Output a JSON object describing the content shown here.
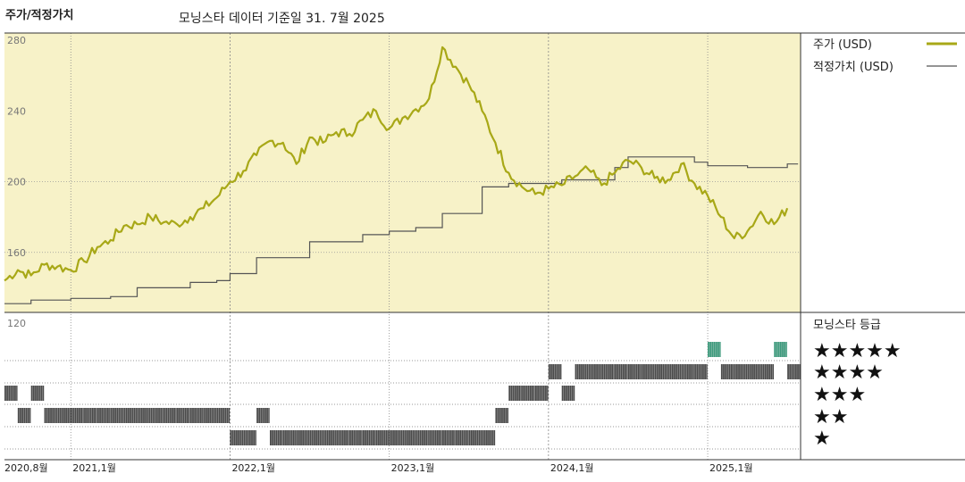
{
  "header": {
    "left_title": "주가/적정가치",
    "subtitle": "모닝스타 데이터 기준일 31. 7월 2025"
  },
  "colors": {
    "price": "#a8a817",
    "fair_value": "#555555",
    "plot_bg": "#f7f2c8",
    "rating_bar": "#4a4a4a",
    "rating_top": "#3c9a7c"
  },
  "chart_data": {
    "type": "line",
    "ylim": [
      120,
      280
    ],
    "y_ticks": [
      "280",
      "240",
      "200",
      "160",
      "120"
    ],
    "x_ticks": [
      "2020,8월",
      "2021,1월",
      "2022,1월",
      "2023,1월",
      "2024,1월",
      "2025,1월"
    ],
    "series": [
      {
        "name": "주가 (USD)",
        "x": [
          "2020-08",
          "2020-09",
          "2020-10",
          "2020-11",
          "2020-12",
          "2021-01",
          "2021-02",
          "2021-03",
          "2021-04",
          "2021-05",
          "2021-06",
          "2021-07",
          "2021-08",
          "2021-09",
          "2021-10",
          "2021-11",
          "2021-12",
          "2022-01",
          "2022-02",
          "2022-03",
          "2022-04",
          "2022-05",
          "2022-06",
          "2022-07",
          "2022-08",
          "2022-09",
          "2022-10",
          "2022-11",
          "2022-12",
          "2023-01",
          "2023-02",
          "2023-03",
          "2023-04",
          "2023-05",
          "2023-06",
          "2023-07",
          "2023-08",
          "2023-09",
          "2023-10",
          "2023-11",
          "2023-12",
          "2024-01",
          "2024-02",
          "2024-03",
          "2024-04",
          "2024-05",
          "2024-06",
          "2024-07",
          "2024-08",
          "2024-09",
          "2024-10",
          "2024-11",
          "2024-12",
          "2025-01",
          "2025-02",
          "2025-03",
          "2025-04",
          "2025-05",
          "2025-06",
          "2025-07"
        ],
        "values": [
          144,
          150,
          147,
          153,
          152,
          150,
          155,
          163,
          167,
          175,
          176,
          180,
          177,
          176,
          180,
          185,
          191,
          200,
          206,
          215,
          223,
          222,
          210,
          225,
          222,
          228,
          227,
          235,
          240,
          230,
          236,
          241,
          247,
          276,
          265,
          255,
          240,
          222,
          205,
          197,
          193,
          196,
          198,
          203,
          207,
          198,
          205,
          212,
          208,
          202,
          201,
          210,
          199,
          192,
          180,
          168,
          172,
          183,
          176,
          185
        ]
      },
      {
        "name": "적정가치 (USD)",
        "x": [
          "2020-08",
          "2020-10",
          "2021-01",
          "2021-04",
          "2021-06",
          "2021-10",
          "2021-12",
          "2022-01",
          "2022-03",
          "2022-07",
          "2022-11",
          "2023-01",
          "2023-03",
          "2023-05",
          "2023-08",
          "2023-10",
          "2024-02",
          "2024-06",
          "2024-07",
          "2024-12",
          "2025-01",
          "2025-04",
          "2025-07"
        ],
        "values": [
          131,
          133,
          134,
          135,
          140,
          143,
          144,
          148,
          157,
          166,
          170,
          172,
          174,
          182,
          197,
          199,
          201,
          208,
          214,
          211,
          209,
          208,
          210
        ]
      }
    ],
    "rating_legend_title": "모닝스타 등급",
    "rating_stars": [
      "★★★★★",
      "★★★★",
      "★★★",
      "★★",
      "★"
    ],
    "ratings": {
      "months": [
        "2020-08",
        "2020-09",
        "2020-10",
        "2020-11",
        "2020-12",
        "2021-01",
        "2021-02",
        "2021-03",
        "2021-04",
        "2021-05",
        "2021-06",
        "2021-07",
        "2021-08",
        "2021-09",
        "2021-10",
        "2021-11",
        "2021-12",
        "2022-01",
        "2022-02",
        "2022-03",
        "2022-04",
        "2022-05",
        "2022-06",
        "2022-07",
        "2022-08",
        "2022-09",
        "2022-10",
        "2022-11",
        "2022-12",
        "2023-01",
        "2023-02",
        "2023-03",
        "2023-04",
        "2023-05",
        "2023-06",
        "2023-07",
        "2023-08",
        "2023-09",
        "2023-10",
        "2023-11",
        "2023-12",
        "2024-01",
        "2024-02",
        "2024-03",
        "2024-04",
        "2024-05",
        "2024-06",
        "2024-07",
        "2024-08",
        "2024-09",
        "2024-10",
        "2024-11",
        "2024-12",
        "2025-01",
        "2025-02",
        "2025-03",
        "2025-04",
        "2025-05",
        "2025-06",
        "2025-07"
      ],
      "stars": [
        3,
        2,
        3,
        2,
        2,
        2,
        2,
        2,
        2,
        2,
        2,
        2,
        2,
        2,
        2,
        2,
        2,
        1,
        1,
        2,
        1,
        1,
        1,
        1,
        1,
        1,
        1,
        1,
        1,
        1,
        1,
        1,
        1,
        1,
        1,
        1,
        1,
        2,
        3,
        3,
        3,
        4,
        3,
        4,
        4,
        4,
        4,
        4,
        4,
        4,
        4,
        4,
        4,
        5,
        4,
        4,
        4,
        4,
        5,
        4
      ]
    }
  }
}
